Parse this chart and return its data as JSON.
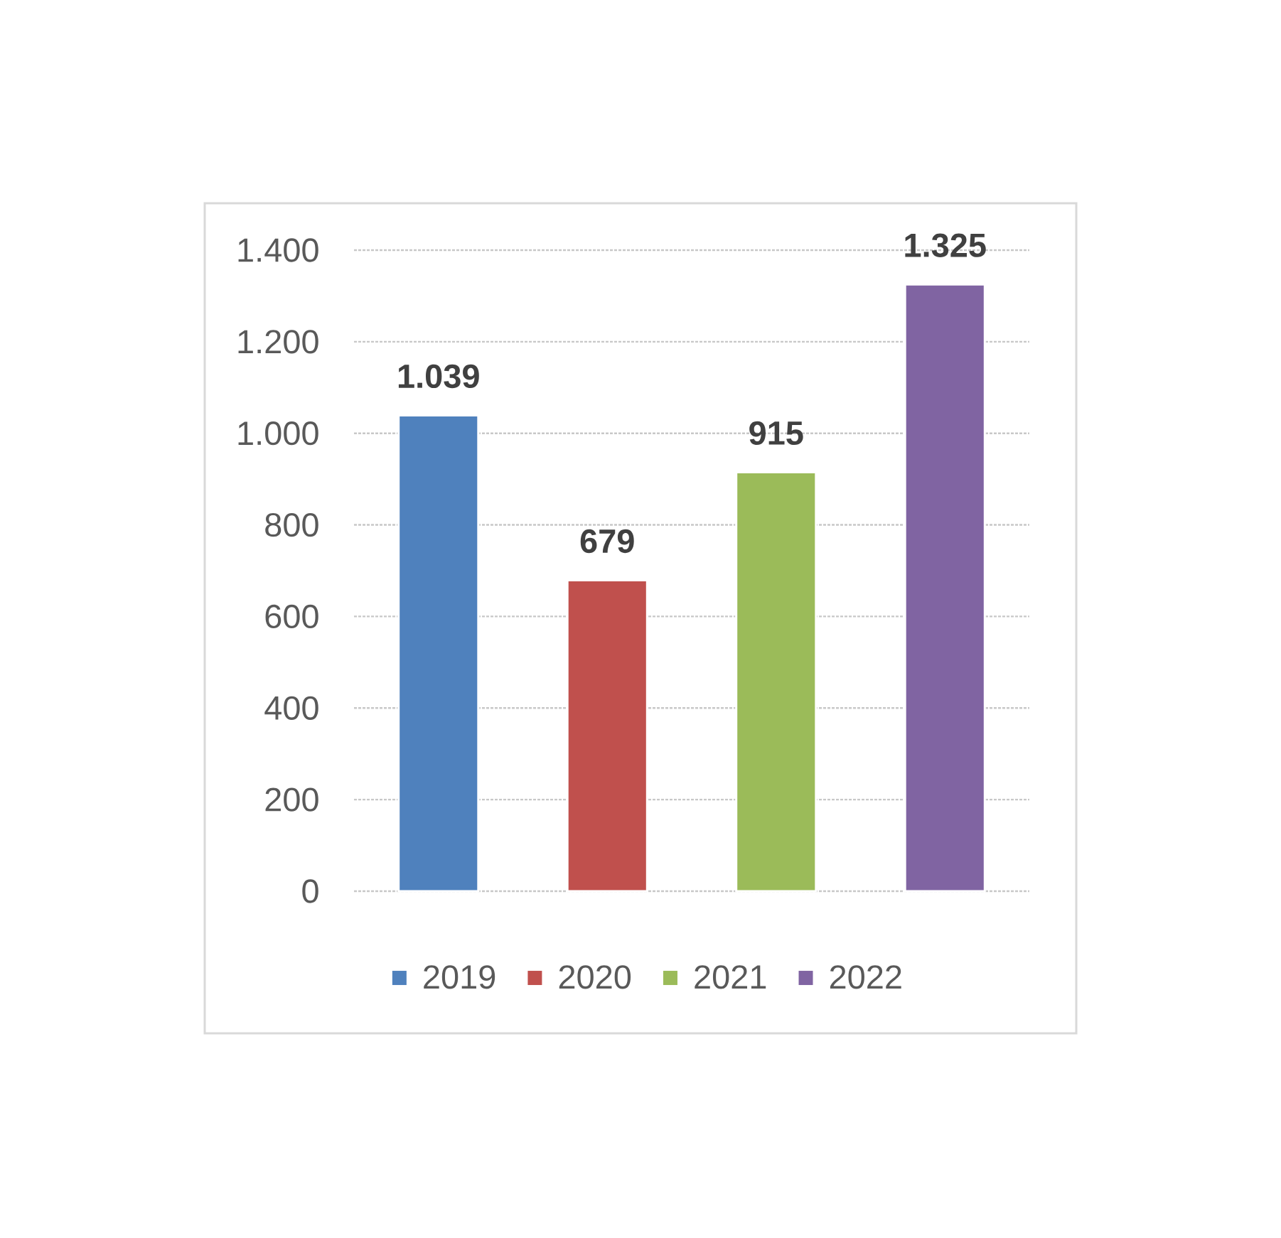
{
  "chart_data": {
    "type": "bar",
    "categories": [
      null
    ],
    "series": [
      {
        "name": "2019",
        "color": "#4f81bd",
        "values": [
          1039
        ],
        "value_labels": [
          "1.039"
        ]
      },
      {
        "name": "2020",
        "color": "#c0504d",
        "values": [
          679
        ],
        "value_labels": [
          "679"
        ]
      },
      {
        "name": "2021",
        "color": "#9bbb59",
        "values": [
          915
        ],
        "value_labels": [
          "915"
        ]
      },
      {
        "name": "2022",
        "color": "#8064a2",
        "values": [
          1325
        ],
        "value_labels": [
          "1.325"
        ]
      }
    ],
    "ylim": [
      0,
      1400
    ],
    "yticks": [
      0,
      200,
      400,
      600,
      800,
      {
        "value": 1000,
        "label": "1.000"
      },
      {
        "value": 1200,
        "label": "1.200"
      },
      {
        "value": 1400,
        "label": "1.400"
      }
    ],
    "grid": "y",
    "legend": "bottom"
  }
}
